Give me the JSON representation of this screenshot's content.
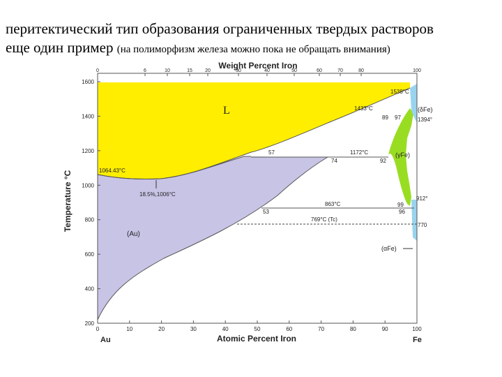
{
  "slide": {
    "line1": "перитектический тип образования ограниченных твердых растворов",
    "line2": "еще один пример",
    "line2_note": "(на полиморфизм железа можно пока не обращать внимания)"
  },
  "diagram": {
    "top_axis_title": "Weight Percent Iron",
    "bottom_axis_title": "Atomic Percent Iron",
    "y_axis_title": "Temperature °C",
    "left_element": "Au",
    "right_element": "Fe",
    "top_ticks": [
      "0",
      "6",
      "10",
      "15",
      "20",
      "30",
      "40",
      "50",
      "60",
      "70",
      "80",
      "100"
    ],
    "bottom_ticks": [
      "0",
      "10",
      "20",
      "30",
      "40",
      "50",
      "60",
      "70",
      "80",
      "90",
      "100"
    ],
    "y_ticks": [
      "200",
      "400",
      "600",
      "800",
      "1000",
      "1200",
      "1400",
      "1600"
    ],
    "labels": {
      "liquid": "L",
      "au_phase": "(Au)",
      "gamma_phase": "(γFe)",
      "delta_phase": "(δFe)",
      "alpha_phase": "(αFe)",
      "au_melt": "1064.43°C",
      "minimum": "18.5%,1006°C",
      "peritectic_temp": "1172°C",
      "comp_57": "57",
      "comp_74": "74",
      "comp_92": "92",
      "fe_melt": "1538°C",
      "delta_temp": "1433°C",
      "comp_89": "89",
      "comp_97": "97",
      "t_1394": "1394°",
      "t_912": "912°",
      "eutectoid_temp": "863°C",
      "comp_53": "53",
      "comp_99": "99",
      "comp_96": "96",
      "curie": "769°C (Tc)",
      "t_770": "770"
    }
  },
  "colors": {
    "liquid": "#ffee00",
    "au_solid": "#c8c4e6",
    "gamma": "#99dd22",
    "delta": "#99d4ee",
    "axis": "#555555"
  }
}
